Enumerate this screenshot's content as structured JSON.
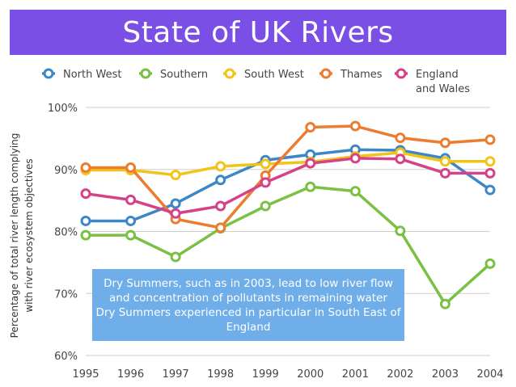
{
  "chart_data": {
    "type": "line",
    "title": "State of UK Rivers",
    "ylabel_lines": [
      "Percentage of total river length complying",
      "with river ecosystem objectives"
    ],
    "xlabel": "",
    "ylim": [
      60,
      100
    ],
    "yticks": [
      60,
      70,
      80,
      90,
      100
    ],
    "ytick_labels": [
      "60%",
      "70%",
      "80%",
      "90%",
      "100%"
    ],
    "x": [
      1995,
      1996,
      1997,
      1998,
      1999,
      2000,
      2001,
      2002,
      2003,
      2004
    ],
    "x_labels": [
      "1995",
      "1996",
      "1997",
      "1998",
      "1999",
      "2000",
      "2001",
      "2002",
      "2003",
      "2004"
    ],
    "grid": true,
    "legend_position": "top",
    "series": [
      {
        "name": "North West",
        "legend_lines": [
          "North West"
        ],
        "color": "#3d87c7",
        "values": [
          81.7,
          81.7,
          84.5,
          88.3,
          91.5,
          92.4,
          93.2,
          93.1,
          91.8,
          86.7
        ]
      },
      {
        "name": "Southern",
        "legend_lines": [
          "Southern"
        ],
        "color": "#7ac143",
        "values": [
          79.4,
          79.4,
          75.9,
          80.5,
          84.1,
          87.2,
          86.5,
          80.1,
          68.3,
          74.8
        ]
      },
      {
        "name": "South West",
        "legend_lines": [
          "South West"
        ],
        "color": "#f0c419",
        "values": [
          89.9,
          89.9,
          89.1,
          90.5,
          90.9,
          91.2,
          92.1,
          92.7,
          91.3,
          91.3
        ]
      },
      {
        "name": "Thames",
        "legend_lines": [
          "Thames"
        ],
        "color": "#ec7c30",
        "values": [
          90.3,
          90.3,
          82.0,
          80.6,
          89.0,
          96.8,
          97.0,
          95.1,
          94.3,
          94.8
        ]
      },
      {
        "name": "England and Wales",
        "legend_lines": [
          "England",
          "and Wales"
        ],
        "color": "#d6428a",
        "values": [
          86.1,
          85.1,
          82.9,
          84.1,
          87.9,
          91.0,
          91.8,
          91.7,
          89.4,
          89.4
        ]
      }
    ]
  },
  "annotation": {
    "lines": [
      "Dry Summers, such as in 2003, lead to low river flow",
      "and concentration of pollutants in remaining water",
      "Dry Summers experienced in particular in South East of",
      "England"
    ]
  }
}
